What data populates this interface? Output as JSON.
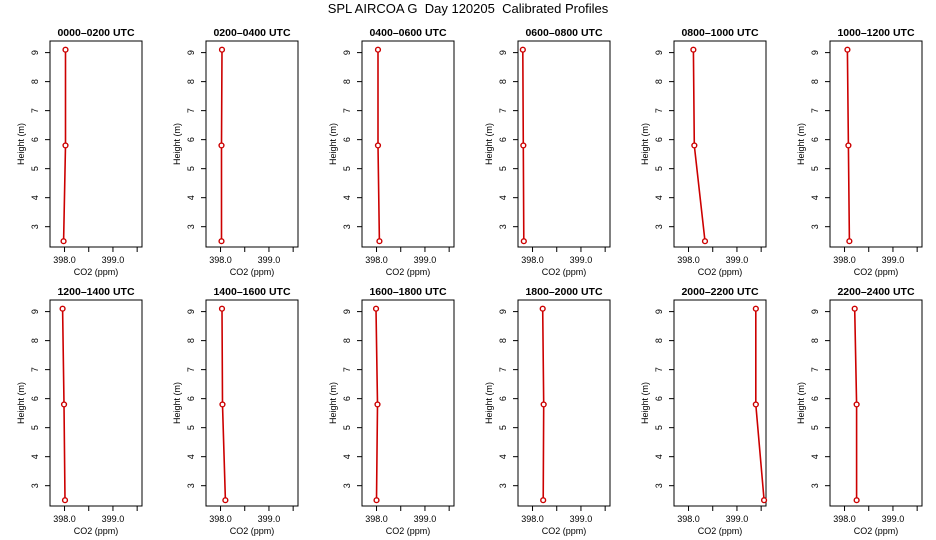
{
  "figure": {
    "title": "SPL AIRCOA G  Day 120205  Calibrated Profiles",
    "background": "#ffffff",
    "series_color": "#cc0000"
  },
  "chart_data": [
    {
      "type": "line",
      "title": "0000–0200 UTC",
      "xlabel": "CO2 (ppm)",
      "ylabel": "Height (m)",
      "xlim": [
        397.7,
        399.6
      ],
      "ylim": [
        2.3,
        9.4
      ],
      "xticks": [
        398.0,
        398.5,
        399.0,
        399.5
      ],
      "xtick_labels": [
        "398.0",
        "",
        "399.0",
        ""
      ],
      "yticks": [
        3,
        4,
        5,
        6,
        7,
        8,
        9
      ],
      "series": [
        {
          "x": [
            397.98,
            398.02,
            398.02
          ],
          "y": [
            2.5,
            5.8,
            9.1
          ]
        }
      ]
    },
    {
      "type": "line",
      "title": "0200–0400 UTC",
      "xlabel": "CO2 (ppm)",
      "ylabel": "Height (m)",
      "xlim": [
        397.7,
        399.6
      ],
      "ylim": [
        2.3,
        9.4
      ],
      "xticks": [
        398.0,
        398.5,
        399.0,
        399.5
      ],
      "xtick_labels": [
        "398.0",
        "",
        "399.0",
        ""
      ],
      "yticks": [
        3,
        4,
        5,
        6,
        7,
        8,
        9
      ],
      "series": [
        {
          "x": [
            398.02,
            398.02,
            398.03
          ],
          "y": [
            2.5,
            5.8,
            9.1
          ]
        }
      ]
    },
    {
      "type": "line",
      "title": "0400–0600 UTC",
      "xlabel": "CO2 (ppm)",
      "ylabel": "Height (m)",
      "xlim": [
        397.7,
        399.6
      ],
      "ylim": [
        2.3,
        9.4
      ],
      "xticks": [
        398.0,
        398.5,
        399.0,
        399.5
      ],
      "xtick_labels": [
        "398.0",
        "",
        "399.0",
        ""
      ],
      "yticks": [
        3,
        4,
        5,
        6,
        7,
        8,
        9
      ],
      "series": [
        {
          "x": [
            398.06,
            398.03,
            398.03
          ],
          "y": [
            2.5,
            5.8,
            9.1
          ]
        }
      ]
    },
    {
      "type": "line",
      "title": "0600–0800 UTC",
      "xlabel": "CO2 (ppm)",
      "ylabel": "Height (m)",
      "xlim": [
        397.7,
        399.6
      ],
      "ylim": [
        2.3,
        9.4
      ],
      "xticks": [
        398.0,
        398.5,
        399.0,
        399.5
      ],
      "xtick_labels": [
        "398.0",
        "",
        "399.0",
        ""
      ],
      "yticks": [
        3,
        4,
        5,
        6,
        7,
        8,
        9
      ],
      "series": [
        {
          "x": [
            397.82,
            397.81,
            397.8
          ],
          "y": [
            2.5,
            5.8,
            9.1
          ]
        }
      ]
    },
    {
      "type": "line",
      "title": "0800–1000 UTC",
      "xlabel": "CO2 (ppm)",
      "ylabel": "Height (m)",
      "xlim": [
        397.7,
        399.6
      ],
      "ylim": [
        2.3,
        9.4
      ],
      "xticks": [
        398.0,
        398.5,
        399.0,
        399.5
      ],
      "xtick_labels": [
        "398.0",
        "",
        "399.0",
        ""
      ],
      "yticks": [
        3,
        4,
        5,
        6,
        7,
        8,
        9
      ],
      "series": [
        {
          "x": [
            398.34,
            398.12,
            398.1
          ],
          "y": [
            2.5,
            5.8,
            9.1
          ]
        }
      ]
    },
    {
      "type": "line",
      "title": "1000–1200 UTC",
      "xlabel": "CO2 (ppm)",
      "ylabel": "Height (m)",
      "xlim": [
        397.7,
        399.6
      ],
      "ylim": [
        2.3,
        9.4
      ],
      "xticks": [
        398.0,
        398.5,
        399.0,
        399.5
      ],
      "xtick_labels": [
        "398.0",
        "",
        "399.0",
        ""
      ],
      "yticks": [
        3,
        4,
        5,
        6,
        7,
        8,
        9
      ],
      "series": [
        {
          "x": [
            398.1,
            398.08,
            398.06
          ],
          "y": [
            2.5,
            5.8,
            9.1
          ]
        }
      ]
    },
    {
      "type": "line",
      "title": "1200–1400 UTC",
      "xlabel": "CO2 (ppm)",
      "ylabel": "Height (m)",
      "xlim": [
        397.7,
        399.6
      ],
      "ylim": [
        2.3,
        9.4
      ],
      "xticks": [
        398.0,
        398.5,
        399.0,
        399.5
      ],
      "xtick_labels": [
        "398.0",
        "",
        "399.0",
        ""
      ],
      "yticks": [
        3,
        4,
        5,
        6,
        7,
        8,
        9
      ],
      "series": [
        {
          "x": [
            398.01,
            397.99,
            397.96
          ],
          "y": [
            2.5,
            5.8,
            9.1
          ]
        }
      ]
    },
    {
      "type": "line",
      "title": "1400–1600 UTC",
      "xlabel": "CO2 (ppm)",
      "ylabel": "Height (m)",
      "xlim": [
        397.7,
        399.6
      ],
      "ylim": [
        2.3,
        9.4
      ],
      "xticks": [
        398.0,
        398.5,
        399.0,
        399.5
      ],
      "xtick_labels": [
        "398.0",
        "",
        "399.0",
        ""
      ],
      "yticks": [
        3,
        4,
        5,
        6,
        7,
        8,
        9
      ],
      "series": [
        {
          "x": [
            398.1,
            398.04,
            398.03
          ],
          "y": [
            2.5,
            5.8,
            9.1
          ]
        }
      ]
    },
    {
      "type": "line",
      "title": "1600–1800 UTC",
      "xlabel": "CO2 (ppm)",
      "ylabel": "Height (m)",
      "xlim": [
        397.7,
        399.6
      ],
      "ylim": [
        2.3,
        9.4
      ],
      "xticks": [
        398.0,
        398.5,
        399.0,
        399.5
      ],
      "xtick_labels": [
        "398.0",
        "",
        "399.0",
        ""
      ],
      "yticks": [
        3,
        4,
        5,
        6,
        7,
        8,
        9
      ],
      "series": [
        {
          "x": [
            398.0,
            398.02,
            397.99
          ],
          "y": [
            2.5,
            5.8,
            9.1
          ]
        }
      ]
    },
    {
      "type": "line",
      "title": "1800–2000 UTC",
      "xlabel": "CO2 (ppm)",
      "ylabel": "Height (m)",
      "xlim": [
        397.7,
        399.6
      ],
      "ylim": [
        2.3,
        9.4
      ],
      "xticks": [
        398.0,
        398.5,
        399.0,
        399.5
      ],
      "xtick_labels": [
        "398.0",
        "",
        "399.0",
        ""
      ],
      "yticks": [
        3,
        4,
        5,
        6,
        7,
        8,
        9
      ],
      "series": [
        {
          "x": [
            398.22,
            398.23,
            398.21
          ],
          "y": [
            2.5,
            5.8,
            9.1
          ]
        }
      ]
    },
    {
      "type": "line",
      "title": "2000–2200 UTC",
      "xlabel": "CO2 (ppm)",
      "ylabel": "Height (m)",
      "xlim": [
        397.7,
        399.6
      ],
      "ylim": [
        2.3,
        9.4
      ],
      "xticks": [
        398.0,
        398.5,
        399.0,
        399.5
      ],
      "xtick_labels": [
        "398.0",
        "",
        "399.0",
        ""
      ],
      "yticks": [
        3,
        4,
        5,
        6,
        7,
        8,
        9
      ],
      "series": [
        {
          "x": [
            399.56,
            399.39,
            399.39
          ],
          "y": [
            2.5,
            5.8,
            9.1
          ]
        }
      ]
    },
    {
      "type": "line",
      "title": "2200–2400 UTC",
      "xlabel": "CO2 (ppm)",
      "ylabel": "Height (m)",
      "xlim": [
        397.7,
        399.6
      ],
      "ylim": [
        2.3,
        9.4
      ],
      "xticks": [
        398.0,
        398.5,
        399.0,
        399.5
      ],
      "xtick_labels": [
        "398.0",
        "",
        "399.0",
        ""
      ],
      "yticks": [
        3,
        4,
        5,
        6,
        7,
        8,
        9
      ],
      "series": [
        {
          "x": [
            398.25,
            398.25,
            398.21
          ],
          "y": [
            2.5,
            5.8,
            9.1
          ]
        }
      ]
    }
  ]
}
